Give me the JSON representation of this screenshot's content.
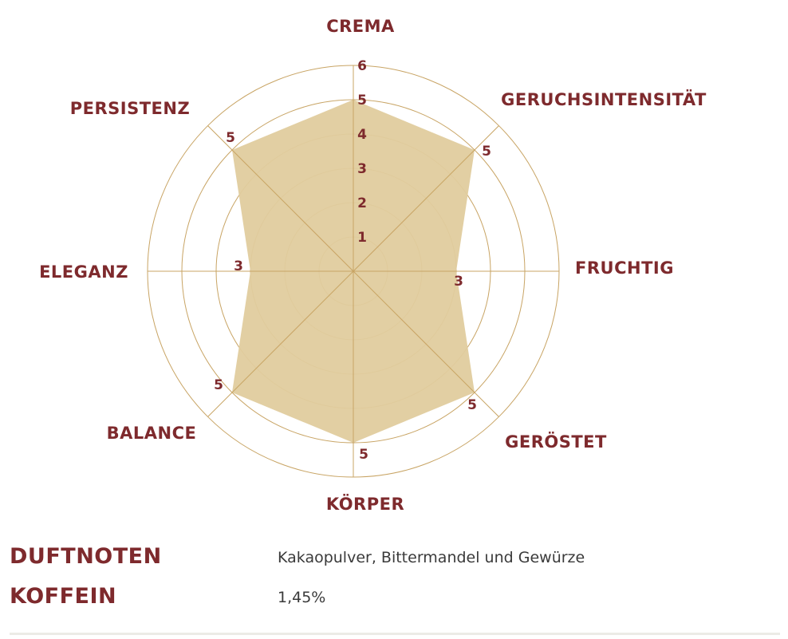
{
  "chart_data": {
    "type": "radar",
    "axes": [
      "CREMA",
      "GERUCHSINTENSITÄT",
      "FRUCHTIG",
      "GERÖSTET",
      "KÖRPER",
      "BALANCE",
      "ELEGANZ",
      "PERSISTENZ"
    ],
    "values": [
      5,
      5,
      3,
      5,
      5,
      5,
      3,
      5
    ],
    "value_labels": [
      "5",
      "5",
      "3",
      "5",
      "5",
      "5",
      "3",
      "5"
    ],
    "scale": {
      "min": 0,
      "max": 6,
      "ticks": [
        "1",
        "2",
        "3",
        "4",
        "5",
        "6"
      ]
    },
    "colors": {
      "fill": "#e0cc9e",
      "grid": "#c8a464",
      "label": "#7e2a2d"
    }
  },
  "details": [
    {
      "label": "DUFTNOTEN",
      "value": "Kakaopulver, Bittermandel und Gewürze"
    },
    {
      "label": "KOFFEIN",
      "value": "1,45%"
    }
  ]
}
